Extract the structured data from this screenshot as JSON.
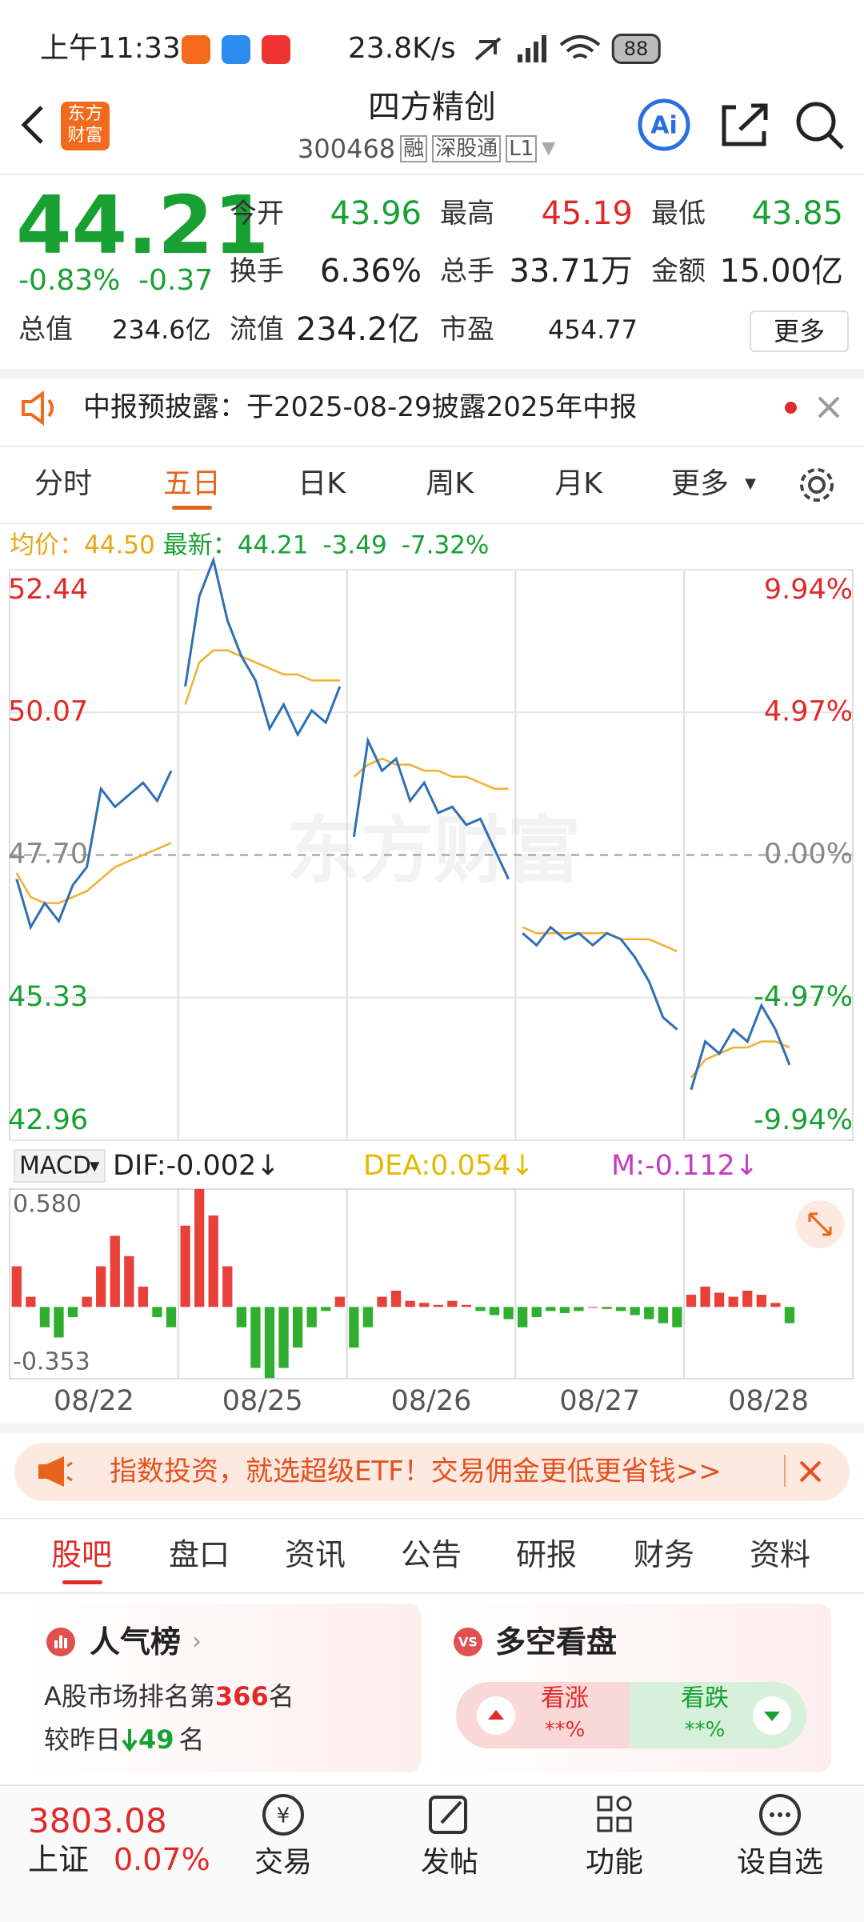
{
  "status_bar": {
    "time": "上午11:33",
    "speed": "23.8K/s",
    "battery": "88"
  },
  "header": {
    "logo": [
      "东方",
      "财富"
    ],
    "name": "四方精创",
    "code": "300468",
    "tags": [
      "融",
      "深股通",
      "L1"
    ]
  },
  "quote": {
    "price": "44.21",
    "change_pct": "-0.83%",
    "change": "-0.37",
    "fields": [
      {
        "label": "今开",
        "value": "43.96"
      },
      {
        "label": "最高",
        "value": "45.19"
      },
      {
        "label": "最低",
        "value": "43.85"
      },
      {
        "label": "换手",
        "value": "6.36%"
      },
      {
        "label": "总手",
        "value": "33.71万"
      },
      {
        "label": "金额",
        "value": "15.00亿"
      },
      {
        "label": "总值",
        "value": "234.6亿"
      },
      {
        "label": "流值",
        "value": "234.2亿"
      },
      {
        "label": "市盈",
        "value": "454.77"
      }
    ],
    "more": "更多"
  },
  "notice": "中报预披露：于2025-08-29披露2025年中报",
  "period_tabs": [
    "分时",
    "五日",
    "日K",
    "周K",
    "月K",
    "更多"
  ],
  "legend": {
    "avg_label": "均价：",
    "avg": "44.50",
    "latest_label": "最新：",
    "latest": "44.21",
    "change": "-3.49",
    "change_pct": "-7.32%"
  },
  "watermark": "东方财富",
  "chart": {
    "ylim": [
      42.96,
      52.44
    ],
    "yticks": [
      52.44,
      50.07,
      {
        "value": 47.7,
        "label": "47.70"
      },
      45.33,
      42.96
    ],
    "y2lim": [
      -9.94,
      9.94
    ],
    "y2ticks": [
      {
        "value": 9.94,
        "label": "9.94%"
      },
      {
        "value": 4.97,
        "label": "4.97%"
      },
      {
        "value": 0,
        "label": "0.00%"
      },
      {
        "value": -4.97,
        "label": "-4.97%"
      },
      {
        "value": -9.94,
        "label": "-9.94%"
      }
    ],
    "days": [
      {
        "date": "08/22",
        "price": [
          47.3,
          46.5,
          46.9,
          46.6,
          47.2,
          47.5,
          48.8,
          48.5,
          48.7,
          48.9,
          48.6,
          49.1
        ],
        "avg": [
          47.4,
          47.0,
          46.9,
          46.9,
          47.0,
          47.1,
          47.3,
          47.5,
          47.6,
          47.7,
          47.8,
          47.9
        ]
      },
      {
        "date": "08/25",
        "price": [
          50.5,
          52.0,
          52.6,
          51.6,
          51.0,
          50.6,
          49.8,
          50.2,
          49.7,
          50.1,
          49.9,
          50.5
        ],
        "avg": [
          50.2,
          50.9,
          51.1,
          51.1,
          51.0,
          50.9,
          50.8,
          50.7,
          50.7,
          50.6,
          50.6,
          50.6
        ]
      },
      {
        "date": "08/26",
        "price": [
          48.0,
          49.6,
          49.1,
          49.3,
          48.6,
          48.9,
          48.4,
          48.5,
          48.2,
          48.3,
          47.8,
          47.3
        ],
        "avg": [
          49.0,
          49.2,
          49.3,
          49.2,
          49.2,
          49.1,
          49.1,
          49.0,
          49.0,
          48.9,
          48.8,
          48.8
        ]
      },
      {
        "date": "08/27",
        "price": [
          46.4,
          46.2,
          46.5,
          46.3,
          46.4,
          46.2,
          46.4,
          46.3,
          46.0,
          45.6,
          45.0,
          44.8
        ],
        "avg": [
          46.5,
          46.4,
          46.4,
          46.4,
          46.4,
          46.4,
          46.4,
          46.3,
          46.3,
          46.3,
          46.2,
          46.1
        ]
      },
      {
        "date": "08/28",
        "price": [
          43.8,
          44.6,
          44.4,
          44.8,
          44.6,
          45.2,
          44.8,
          44.21
        ],
        "avg": [
          44.0,
          44.3,
          44.4,
          44.5,
          44.5,
          44.6,
          44.6,
          44.5
        ]
      }
    ]
  },
  "macd": {
    "selector": "MACD",
    "dif": "DIF:-0.002↓",
    "dea": "DEA:0.054↓",
    "m": "M:-0.112↓",
    "ylim": [
      -0.353,
      0.58
    ],
    "yticks": [
      {
        "value": 0.58,
        "label": "0.580"
      },
      -0.353
    ],
    "hist": [
      [
        0.2,
        0.05,
        -0.1,
        -0.15,
        -0.05,
        0.05,
        0.2,
        0.35,
        0.25,
        0.1,
        -0.05,
        -0.1
      ],
      [
        0.4,
        0.58,
        0.45,
        0.2,
        -0.1,
        -0.3,
        -0.35,
        -0.3,
        -0.2,
        -0.1,
        -0.02,
        0.05
      ],
      [
        -0.2,
        -0.1,
        0.05,
        0.08,
        0.03,
        0.02,
        0.01,
        0.03,
        0.01,
        -0.02,
        -0.04,
        -0.06
      ],
      [
        -0.1,
        -0.05,
        -0.02,
        -0.03,
        -0.02,
        0.0,
        -0.01,
        -0.02,
        -0.04,
        -0.06,
        -0.08,
        -0.1
      ],
      [
        0.06,
        0.1,
        0.07,
        0.05,
        0.08,
        0.06,
        0.02,
        -0.08
      ]
    ]
  },
  "ad": "指数投资，就选超级ETF！交易佣金更低更省钱>>",
  "section_tabs": [
    "股吧",
    "盘口",
    "资讯",
    "公告",
    "研报",
    "财务",
    "资料"
  ],
  "cards": [
    {
      "title": "人气榜",
      "line1_prefix": "A股市场排名第",
      "rank": "366",
      "line1_suffix": "名",
      "line2_prefix": "较昨日",
      "change": "49",
      "line2_suffix": "名"
    },
    {
      "title": "多空看盘",
      "up": "看涨",
      "up_value": "**%",
      "down": "看跌",
      "down_value": "**%"
    }
  ],
  "bottom_nav": {
    "index_value": "3803.08",
    "index_name": "上证",
    "index_change": "0.07%",
    "items": [
      "交易",
      "发帖",
      "功能",
      "设自选"
    ]
  }
}
